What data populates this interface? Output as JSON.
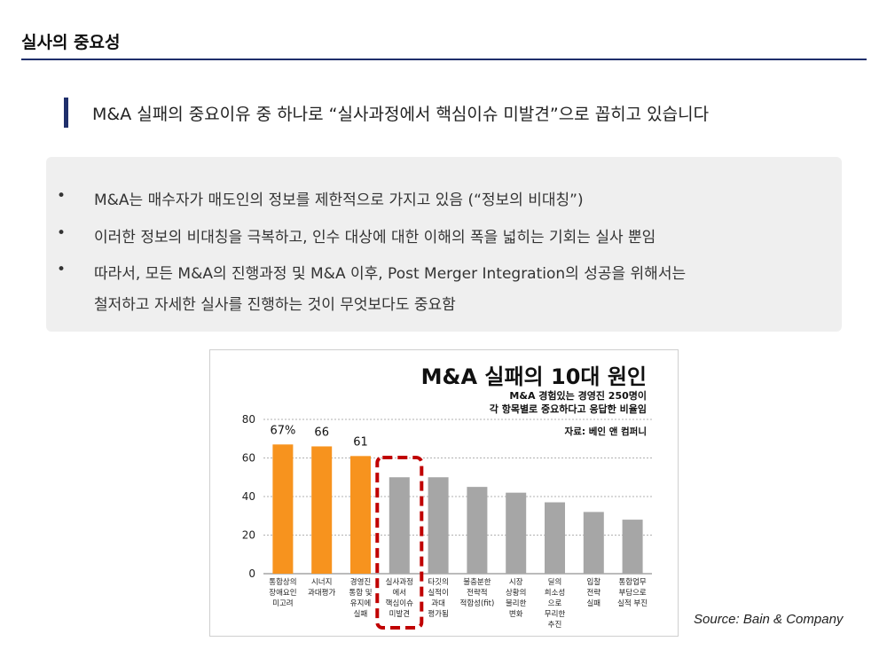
{
  "page": {
    "title": "실사의 중요성",
    "headline": "M&A 실패의 중요이유 중 하나로 “실사과정에서 핵심이슈 미발견”으로 꼽히고 있습니다"
  },
  "bullets": {
    "symbol": "•",
    "items": [
      "M&A는 매수자가 매도인의 정보를 제한적으로 가지고 있음 (“정보의 비대칭”)",
      "이러한 정보의 비대칭을 극복하고, 인수 대상에 대한 이해의 폭을 넓히는 기회는 실사 뿐임",
      "따라서, 모든 M&A의 진행과정 및 M&A 이후, Post Merger Integration의 성공을 위해서는"
    ],
    "continuation": "철저하고 자세한 실사를 진행하는 것이 무엇보다도 중요함"
  },
  "chart_data": {
    "type": "bar",
    "title": "M&A 실패의 10대 원인",
    "subtitle_lines": [
      "M&A 경험있는 경영진 250명이",
      "각 항목별로 중요하다고 응답한 비율임"
    ],
    "note": "자료: 베인 앤 컴퍼니",
    "ylim": [
      0,
      80
    ],
    "yticks": [
      "0",
      "20",
      "40",
      "60",
      "80"
    ],
    "grid": "dashed horizontal",
    "categories": [
      [
        "통합상의",
        "장애요인",
        "미고려"
      ],
      [
        "시너지",
        "과대평가"
      ],
      [
        "경영진",
        "통합 및",
        "유지에",
        "실패"
      ],
      [
        "실사과정",
        "에서",
        "핵심이슈",
        "미발견"
      ],
      [
        "타깃의",
        "실적이",
        "과대",
        "평가됨"
      ],
      [
        "불충분한",
        "전략적",
        "적합성(fit)"
      ],
      [
        "시장",
        "상황의",
        "불리한",
        "변화"
      ],
      [
        "딜의",
        "희소성",
        "으로",
        "무리한",
        "추진"
      ],
      [
        "입찰",
        "전략",
        "실패"
      ],
      [
        "통합업무",
        "부담으로",
        "실적 부진"
      ]
    ],
    "values": [
      67,
      66,
      61,
      50,
      50,
      45,
      42,
      37,
      32,
      28
    ],
    "value_labels": [
      "67%",
      "66",
      "61",
      "",
      "",
      "",
      "",
      "",
      "",
      ""
    ],
    "highlighted_count": 3,
    "highlight_color": "#f7931e",
    "other_color": "#a6a6a6",
    "emphasis_box_index": 3,
    "emphasis_color": "#c00000"
  },
  "source": "Source: Bain & Company"
}
